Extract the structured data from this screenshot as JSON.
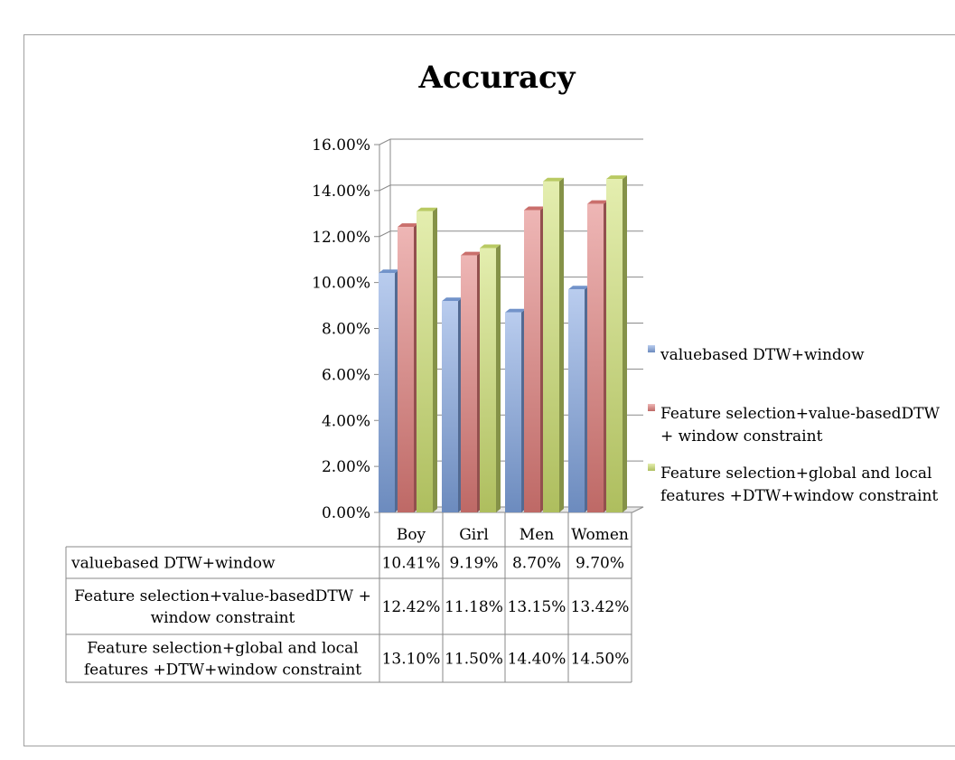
{
  "chart_data": {
    "type": "bar",
    "title": "Accuracy",
    "categories": [
      "Boy",
      "Girl",
      "Men",
      "Women"
    ],
    "series": [
      {
        "name": "valuebased DTW+window",
        "name_lines": [
          "valuebased DTW+window"
        ],
        "table_lines": [
          "valuebased DTW+window"
        ],
        "values": [
          10.41,
          9.19,
          8.7,
          9.7
        ],
        "labels": [
          "10.41%",
          "9.19%",
          "8.70%",
          "9.70%"
        ],
        "color": "#7fa3e0"
      },
      {
        "name": "Feature selection+value-basedDTW + window constraint",
        "name_lines": [
          "Feature selection+value-basedDTW",
          "+ window constraint"
        ],
        "table_lines": [
          "Feature selection+value-basedDTW +",
          "window constraint"
        ],
        "values": [
          12.42,
          11.18,
          13.15,
          13.42
        ],
        "labels": [
          "12.42%",
          "11.18%",
          "13.15%",
          "13.42%"
        ],
        "color": "#e07b78"
      },
      {
        "name": "Feature selection+global and local features +DTW+window constraint",
        "name_lines": [
          "Feature selection+global and local",
          "features +DTW+window constraint"
        ],
        "table_lines": [
          "Feature selection+global and local",
          "features +DTW+window constraint"
        ],
        "values": [
          13.1,
          11.5,
          14.4,
          14.5
        ],
        "labels": [
          "13.10%",
          "11.50%",
          "14.40%",
          "14.50%"
        ],
        "color": "#cde06e"
      }
    ],
    "yticks": [
      "0.00%",
      "2.00%",
      "4.00%",
      "6.00%",
      "8.00%",
      "10.00%",
      "12.00%",
      "14.00%",
      "16.00%"
    ],
    "ylim": [
      0,
      16
    ],
    "grid": true,
    "legend": "right",
    "data_table": true
  }
}
